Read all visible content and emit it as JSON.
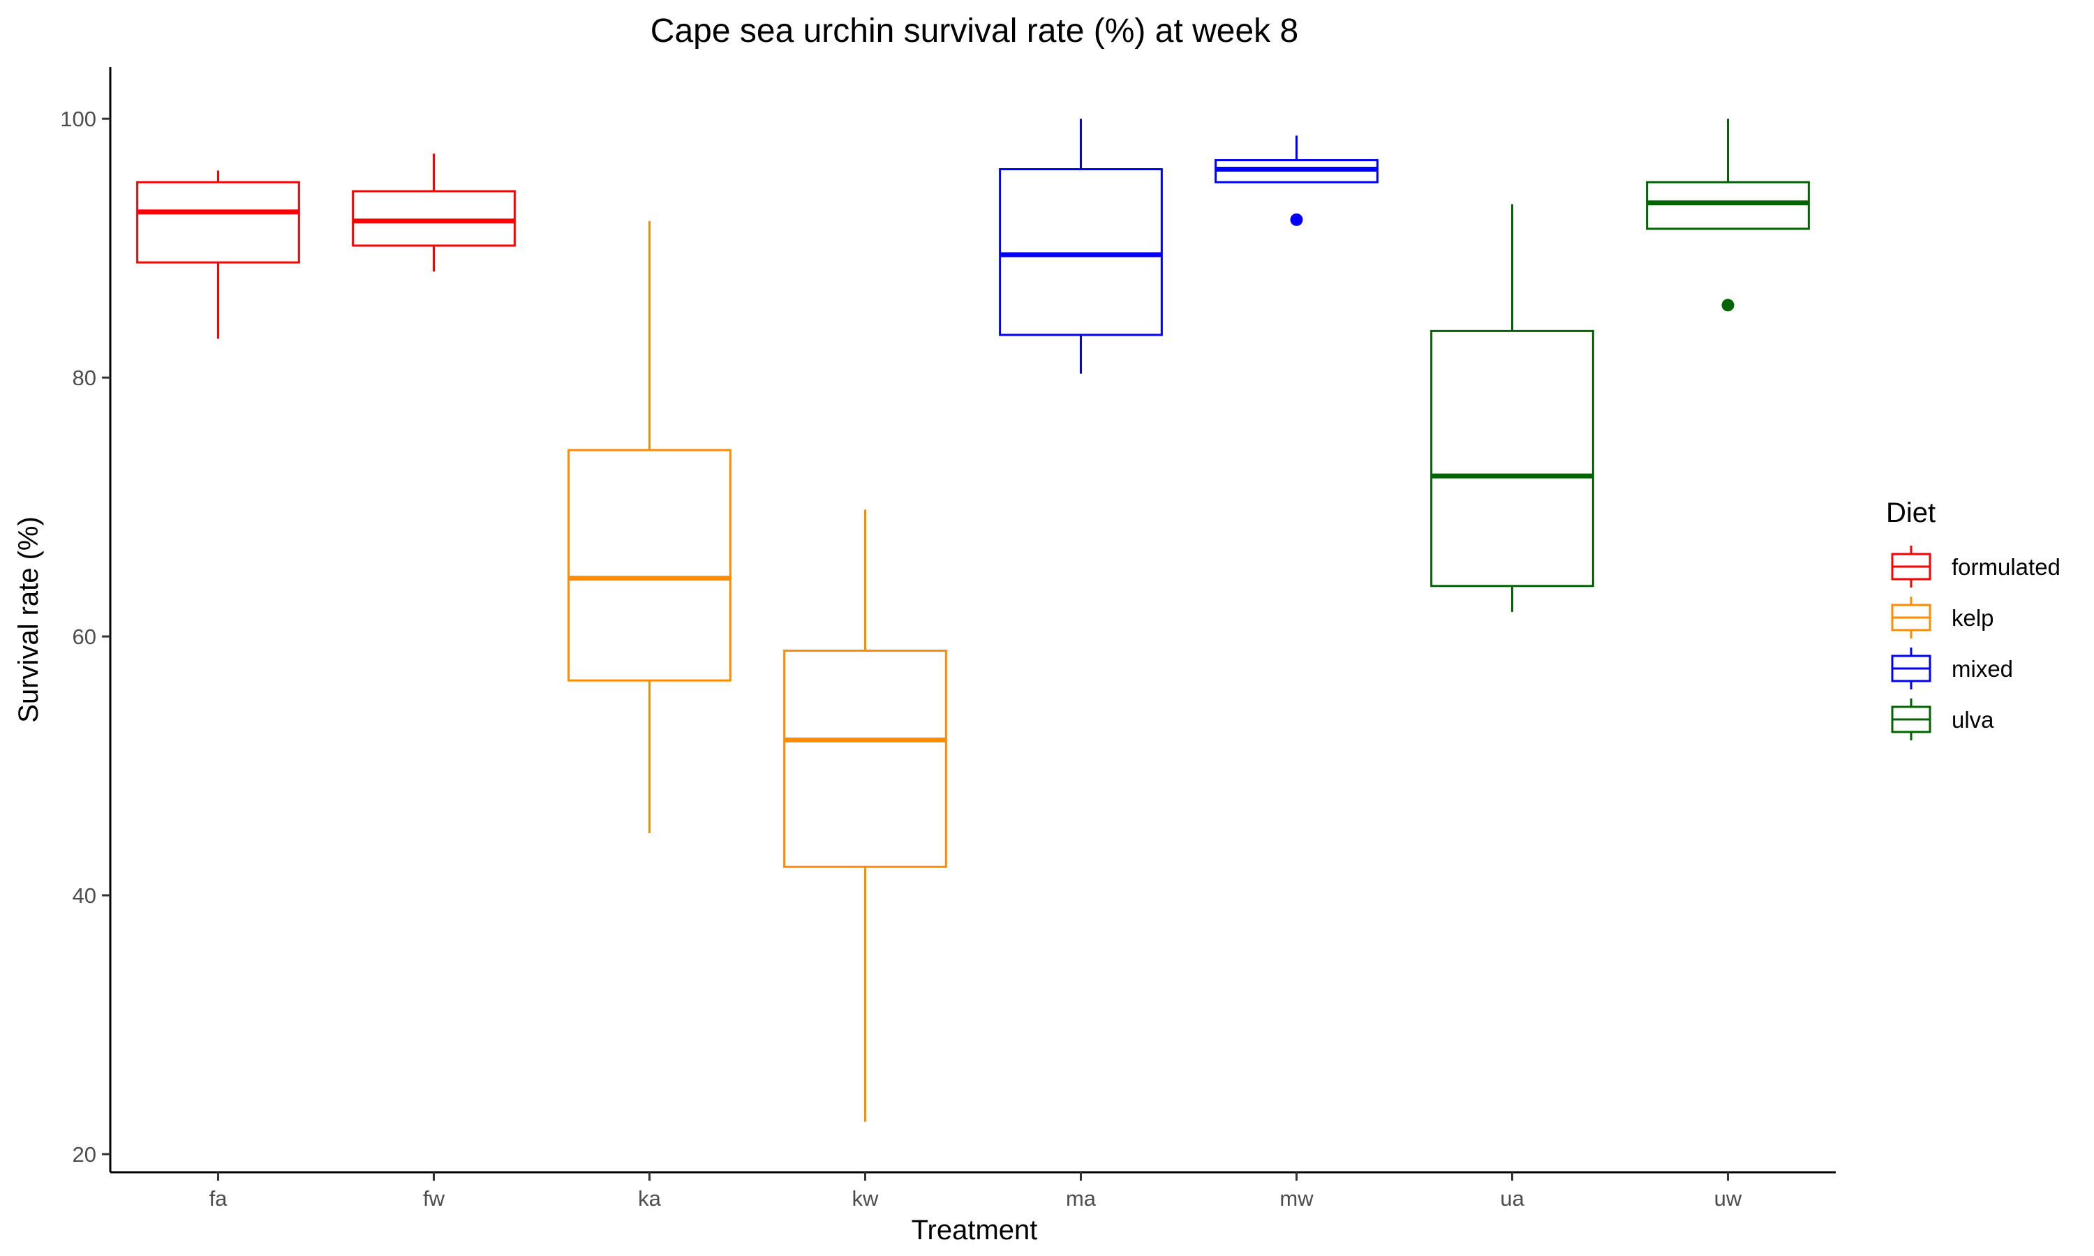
{
  "chart_data": {
    "type": "box",
    "title": "Cape sea urchin survival rate (%) at week 8",
    "xlabel": "Treatment",
    "ylabel": "Survival rate (%)",
    "ylim": [
      18.6,
      104
    ],
    "yticks": [
      20,
      40,
      60,
      80,
      100
    ],
    "categories": [
      "fa",
      "fw",
      "ka",
      "kw",
      "ma",
      "mw",
      "ua",
      "uw"
    ],
    "grid": false,
    "legend": {
      "title": "Diet",
      "position": "right",
      "entries": [
        {
          "label": "formulated",
          "color": "#ff0000"
        },
        {
          "label": "kelp",
          "color": "#ff8c00"
        },
        {
          "label": "mixed",
          "color": "#0000ff"
        },
        {
          "label": "ulva",
          "color": "#006400"
        }
      ]
    },
    "boxes": [
      {
        "category": "fa",
        "diet": "formulated",
        "whisker_low": 83.0,
        "q1": 88.9,
        "median": 92.8,
        "q3": 95.1,
        "whisker_high": 96.0,
        "outliers": []
      },
      {
        "category": "fw",
        "diet": "formulated",
        "whisker_low": 88.2,
        "q1": 90.2,
        "median": 92.1,
        "q3": 94.4,
        "whisker_high": 97.3,
        "outliers": []
      },
      {
        "category": "ka",
        "diet": "kelp",
        "whisker_low": 44.8,
        "q1": 56.6,
        "median": 64.5,
        "q3": 74.4,
        "whisker_high": 92.1,
        "outliers": []
      },
      {
        "category": "kw",
        "diet": "kelp",
        "whisker_low": 22.5,
        "q1": 42.2,
        "median": 52.0,
        "q3": 58.9,
        "whisker_high": 69.8,
        "outliers": []
      },
      {
        "category": "ma",
        "diet": "mixed",
        "whisker_low": 80.3,
        "q1": 83.3,
        "median": 89.5,
        "q3": 96.1,
        "whisker_high": 100.0,
        "outliers": []
      },
      {
        "category": "mw",
        "diet": "mixed",
        "whisker_low": 95.1,
        "q1": 95.1,
        "median": 96.1,
        "q3": 96.8,
        "whisker_high": 98.7,
        "outliers": [
          92.2
        ]
      },
      {
        "category": "ua",
        "diet": "ulva",
        "whisker_low": 61.9,
        "q1": 63.9,
        "median": 72.4,
        "q3": 83.6,
        "whisker_high": 93.4,
        "outliers": []
      },
      {
        "category": "uw",
        "diet": "ulva",
        "whisker_low": 91.5,
        "q1": 91.5,
        "median": 93.5,
        "q3": 95.1,
        "whisker_high": 100.0,
        "outliers": [
          85.6
        ]
      }
    ]
  }
}
